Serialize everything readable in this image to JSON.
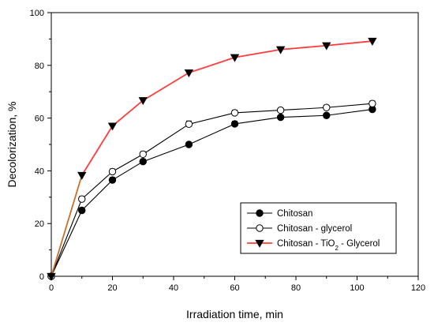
{
  "chart_data": {
    "type": "line",
    "xlabel": "Irradiation time, min",
    "ylabel": "Decolorization, %",
    "xlim": [
      0,
      120
    ],
    "ylim": [
      0,
      100
    ],
    "x_ticks": [
      "0",
      "20",
      "40",
      "60",
      "80",
      "100",
      "120"
    ],
    "y_ticks": [
      "0",
      "20",
      "40",
      "60",
      "80",
      "100"
    ],
    "grid": false,
    "legend_position": "bottom-right",
    "x": [
      0,
      10,
      20,
      30,
      45,
      60,
      75,
      90,
      105
    ],
    "series": [
      {
        "name_parts": [
          "Chitosan"
        ],
        "marker": "filled-circle",
        "line_color": "#000000",
        "values": [
          0,
          25,
          36.5,
          43.5,
          50,
          57.8,
          60.3,
          61,
          63.3
        ],
        "errors": [
          0,
          1,
          1,
          1,
          0.8,
          1,
          0.8,
          0.8,
          1
        ]
      },
      {
        "name_parts": [
          "Chitosan - glycerol"
        ],
        "marker": "open-circle",
        "line_color": "#000000",
        "values": [
          0,
          29.3,
          39.7,
          46.3,
          57.7,
          62,
          63,
          64,
          65.5
        ],
        "errors": [
          0,
          1,
          1,
          1,
          1.2,
          1,
          0.8,
          0.9,
          1
        ]
      },
      {
        "name_parts": [
          "Chitosan - TiO",
          "2",
          " - Glycerol"
        ],
        "marker": "filled-triangle-down",
        "line_color": "#ff3b3b",
        "first_segment_color": "#c8702a",
        "values": [
          0,
          38.3,
          57,
          66.7,
          77.2,
          83,
          86,
          87.5,
          89.2
        ],
        "errors": [
          0,
          1,
          1,
          0.8,
          1,
          1,
          1,
          0.8,
          0.8
        ]
      }
    ]
  }
}
